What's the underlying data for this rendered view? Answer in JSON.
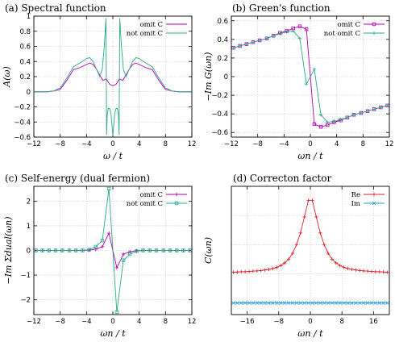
{
  "chart_data": [
    {
      "type": "line",
      "title": "(a) Spectral function",
      "xlabel": "ω / t",
      "ylabel": "A(ω)",
      "xlim": [
        -12,
        12
      ],
      "ylim": [
        -0.6,
        1.0
      ],
      "xticks": [
        -12,
        -8,
        -4,
        0,
        4,
        8,
        12
      ],
      "yticks": [
        -0.6,
        -0.4,
        -0.2,
        0,
        0.2,
        0.4,
        0.6,
        0.8,
        1
      ],
      "grid": true,
      "legend": "top-right",
      "series": [
        {
          "name": "omit C",
          "color": "#b000b0",
          "markers": false,
          "x": [
            -12,
            -10,
            -9,
            -8,
            -7,
            -6,
            -5,
            -4,
            -3.5,
            -3,
            -2.5,
            -2,
            -1.5,
            -1,
            -0.5,
            0,
            0.5,
            1,
            1.5,
            2,
            2.5,
            3,
            3.5,
            4,
            5,
            6,
            7,
            8,
            9,
            10,
            12
          ],
          "y": [
            0.0,
            0.0,
            0.01,
            0.03,
            0.15,
            0.29,
            0.32,
            0.36,
            0.38,
            0.36,
            0.3,
            0.22,
            0.15,
            0.17,
            0.1,
            0.08,
            0.1,
            0.17,
            0.15,
            0.22,
            0.3,
            0.36,
            0.38,
            0.36,
            0.32,
            0.29,
            0.15,
            0.03,
            0.01,
            0.0,
            0.0
          ]
        },
        {
          "name": "not omit C",
          "color": "#2aa889",
          "markers": false,
          "x": [
            -12,
            -10,
            -9,
            -8,
            -7,
            -6,
            -5,
            -4,
            -3.5,
            -3,
            -2.5,
            -2,
            -1.6,
            -1.3,
            -1.05,
            -1.0,
            -0.95,
            -0.85,
            -0.7,
            -0.5,
            -0.3,
            0,
            0.3,
            0.5,
            0.7,
            0.85,
            0.95,
            1.0,
            1.05,
            1.3,
            1.6,
            2,
            2.5,
            3,
            3.5,
            4,
            5,
            6,
            7,
            8,
            9,
            10,
            12
          ],
          "y": [
            0.0,
            0.0,
            0.01,
            0.05,
            0.18,
            0.33,
            0.38,
            0.44,
            0.45,
            0.4,
            0.3,
            0.2,
            0.3,
            0.6,
            0.97,
            0.2,
            -0.57,
            -0.3,
            -0.22,
            -0.22,
            -0.28,
            -0.58,
            -0.28,
            -0.22,
            -0.22,
            -0.3,
            -0.57,
            0.2,
            0.97,
            0.6,
            0.3,
            0.2,
            0.3,
            0.4,
            0.45,
            0.44,
            0.38,
            0.33,
            0.18,
            0.05,
            0.01,
            0.0,
            0.0
          ]
        }
      ]
    },
    {
      "type": "line",
      "title": "(b) Green's function",
      "xlabel": "ωn / t",
      "ylabel": "−Im G(ωn)",
      "xlim": [
        -12,
        12
      ],
      "ylim": [
        -0.65,
        0.65
      ],
      "xticks": [
        -12,
        -8,
        -4,
        0,
        4,
        8,
        12
      ],
      "yticks": [
        -0.6,
        -0.4,
        -0.2,
        0,
        0.2,
        0.4,
        0.6
      ],
      "grid": true,
      "legend": "top-right",
      "series": [
        {
          "name": "omit C",
          "color": "#b000b0",
          "markers": "square",
          "x": [
            -11.7,
            -10.7,
            -9.7,
            -8.7,
            -7.7,
            -6.6,
            -5.6,
            -4.6,
            -3.6,
            -2.6,
            -1.6,
            -0.6,
            0.6,
            1.6,
            2.6,
            3.6,
            4.6,
            5.6,
            6.6,
            7.7,
            8.7,
            9.7,
            10.7,
            11.7
          ],
          "y": [
            0.31,
            0.33,
            0.35,
            0.37,
            0.39,
            0.41,
            0.44,
            0.47,
            0.49,
            0.52,
            0.54,
            0.51,
            -0.51,
            -0.54,
            -0.52,
            -0.49,
            -0.47,
            -0.44,
            -0.41,
            -0.39,
            -0.37,
            -0.35,
            -0.33,
            -0.31
          ]
        },
        {
          "name": "not omit C",
          "color": "#2aa889",
          "markers": "plus",
          "x": [
            -11.7,
            -10.7,
            -9.7,
            -8.7,
            -7.7,
            -6.6,
            -5.6,
            -4.6,
            -3.6,
            -2.6,
            -1.6,
            -0.6,
            0.6,
            1.6,
            2.6,
            3.6,
            4.6,
            5.6,
            6.6,
            7.7,
            8.7,
            9.7,
            10.7,
            11.7
          ],
          "y": [
            0.31,
            0.33,
            0.35,
            0.37,
            0.39,
            0.41,
            0.44,
            0.46,
            0.48,
            0.49,
            0.41,
            -0.08,
            0.08,
            -0.41,
            -0.49,
            -0.48,
            -0.46,
            -0.44,
            -0.41,
            -0.39,
            -0.37,
            -0.35,
            -0.33,
            -0.31
          ]
        }
      ]
    },
    {
      "type": "line",
      "title": "(c) Self-energy (dual fermion)",
      "xlabel": "ωn / t",
      "ylabel": "−Im Σdual(ωn)",
      "xlim": [
        -12,
        12
      ],
      "ylim": [
        -2.6,
        2.6
      ],
      "xticks": [
        -12,
        -8,
        -4,
        0,
        4,
        8,
        12
      ],
      "yticks": [
        -2,
        -1,
        0,
        1,
        2
      ],
      "grid": true,
      "legend": "top-right",
      "series": [
        {
          "name": "omit C",
          "color": "#b000b0",
          "markers": "plus",
          "x": [
            -11.7,
            -10.7,
            -9.7,
            -8.7,
            -7.7,
            -6.6,
            -5.6,
            -4.6,
            -3.6,
            -2.6,
            -1.6,
            -0.6,
            0.6,
            1.6,
            2.6,
            3.6,
            4.6,
            5.6,
            6.6,
            7.7,
            8.7,
            9.7,
            10.7,
            11.7
          ],
          "y": [
            0,
            0,
            0,
            0,
            0,
            0,
            0,
            0,
            0.01,
            0.05,
            0.15,
            0.7,
            -0.7,
            -0.15,
            -0.05,
            -0.01,
            0,
            0,
            0,
            0,
            0,
            0,
            0,
            0
          ]
        },
        {
          "name": "not omit C",
          "color": "#2aa889",
          "markers": "square",
          "x": [
            -11.7,
            -10.7,
            -9.7,
            -8.7,
            -7.7,
            -6.6,
            -5.6,
            -4.6,
            -3.6,
            -2.6,
            -1.6,
            -0.6,
            0.6,
            1.6,
            2.6,
            3.6,
            4.6,
            5.6,
            6.6,
            7.7,
            8.7,
            9.7,
            10.7,
            11.7
          ],
          "y": [
            0,
            0,
            0,
            0,
            0,
            0,
            0,
            0,
            0.03,
            0.15,
            0.4,
            2.5,
            -2.5,
            -0.4,
            -0.15,
            -0.03,
            0,
            0,
            0,
            0,
            0,
            0,
            0,
            0
          ]
        }
      ]
    },
    {
      "type": "line",
      "title": "(d) Correcton factor",
      "xlabel": "ωn / t",
      "ylabel": "C(ωn)",
      "xlim": [
        -20,
        20
      ],
      "ylim": [
        -0.4,
        4.0
      ],
      "xticks": [
        -16,
        -8,
        0,
        8,
        16
      ],
      "yticks": [],
      "grid": true,
      "legend": "top-right",
      "series": [
        {
          "name": "Re",
          "color": "#e0202a",
          "markers": "plus",
          "x": [
            -19.5,
            -18.5,
            -17.5,
            -16.5,
            -15.5,
            -14.5,
            -13.5,
            -12.5,
            -11.5,
            -10.5,
            -9.5,
            -8.5,
            -7.5,
            -6.5,
            -5.5,
            -4.5,
            -3.5,
            -2.5,
            -1.5,
            -0.5,
            0.5,
            1.5,
            2.5,
            3.5,
            4.5,
            5.5,
            6.5,
            7.5,
            8.5,
            9.5,
            10.5,
            11.5,
            12.5,
            13.5,
            14.5,
            15.5,
            16.5,
            17.5,
            18.5,
            19.5
          ],
          "y": [
            1.05,
            1.06,
            1.07,
            1.07,
            1.08,
            1.09,
            1.1,
            1.11,
            1.13,
            1.15,
            1.18,
            1.22,
            1.28,
            1.37,
            1.5,
            1.7,
            2.0,
            2.4,
            2.95,
            3.52,
            3.52,
            2.95,
            2.4,
            2.0,
            1.7,
            1.5,
            1.37,
            1.28,
            1.22,
            1.18,
            1.15,
            1.13,
            1.11,
            1.1,
            1.09,
            1.08,
            1.07,
            1.07,
            1.06,
            1.05
          ]
        },
        {
          "name": "Im",
          "color": "#2a9fd6",
          "markers": "x",
          "x": [
            -19.5,
            -18.5,
            -17.5,
            -16.5,
            -15.5,
            -14.5,
            -13.5,
            -12.5,
            -11.5,
            -10.5,
            -9.5,
            -8.5,
            -7.5,
            -6.5,
            -5.5,
            -4.5,
            -3.5,
            -2.5,
            -1.5,
            -0.5,
            0.5,
            1.5,
            2.5,
            3.5,
            4.5,
            5.5,
            6.5,
            7.5,
            8.5,
            9.5,
            10.5,
            11.5,
            12.5,
            13.5,
            14.5,
            15.5,
            16.5,
            17.5,
            18.5,
            19.5
          ],
          "y": [
            0,
            0,
            0,
            0,
            0,
            0,
            0,
            0,
            0,
            0,
            0,
            0,
            0,
            0,
            0,
            0,
            0,
            0,
            0,
            0,
            0,
            0,
            0,
            0,
            0,
            0,
            0,
            0,
            0,
            0,
            0,
            0,
            0,
            0,
            0,
            0,
            0,
            0,
            0,
            0
          ]
        }
      ]
    }
  ]
}
